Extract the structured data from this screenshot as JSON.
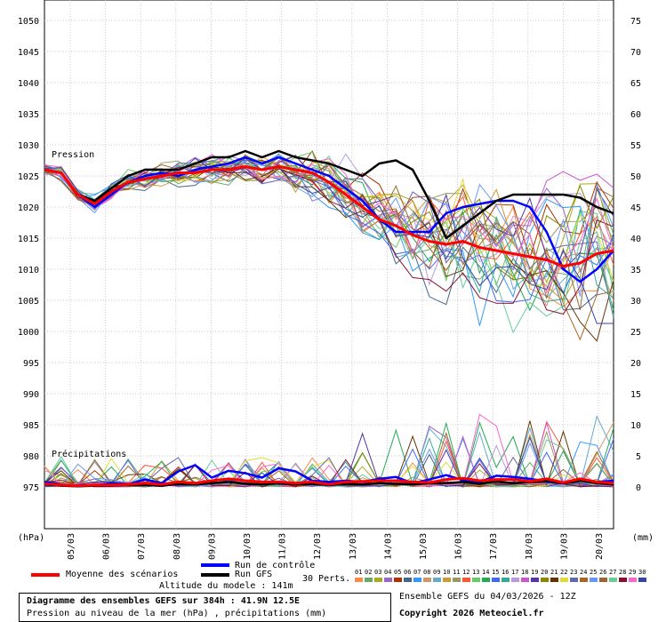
{
  "chart_data": {
    "type": "line",
    "left_axis": {
      "unit_label": "(hPa)",
      "ylim": [
        970,
        1055
      ],
      "ticks": [
        1050,
        1045,
        1040,
        1035,
        1030,
        1025,
        1020,
        1015,
        1010,
        1005,
        1000,
        995,
        990,
        985,
        980,
        975
      ]
    },
    "right_axis": {
      "unit_label": "(mm)",
      "ylim": [
        -5,
        80
      ],
      "ticks": [
        75,
        70,
        65,
        60,
        55,
        50,
        45,
        40,
        35,
        30,
        25,
        20,
        15,
        10,
        5,
        0
      ]
    },
    "x_ticks": [
      "05/03",
      "06/03",
      "07/03",
      "08/03",
      "09/03",
      "10/03",
      "11/03",
      "12/03",
      "13/03",
      "14/03",
      "15/03",
      "16/03",
      "17/03",
      "18/03",
      "19/03",
      "20/03"
    ],
    "grid": true,
    "section_labels": {
      "pressure": "Pression",
      "precip": "Précipitations"
    },
    "series": [
      {
        "name": "Moyenne des scénarios",
        "color": "#ff0000",
        "pressure": [
          1026,
          1025.5,
          1022,
          1020.5,
          1022.5,
          1024,
          1024.5,
          1025,
          1025.5,
          1025.5,
          1026,
          1026,
          1026.5,
          1026,
          1026.5,
          1026,
          1025.5,
          1024,
          1022,
          1020,
          1018,
          1017,
          1015.5,
          1014.5,
          1014,
          1014.5,
          1013.5,
          1013,
          1012.5,
          1012,
          1011.5,
          1010.5,
          1011,
          1012.5,
          1013
        ],
        "precip": [
          0.5,
          0.3,
          0.2,
          0.3,
          0.3,
          0.4,
          0.6,
          0.4,
          0.8,
          0.6,
          1,
          1.3,
          1,
          0.8,
          0.8,
          0.6,
          0.8,
          0.4,
          0.8,
          0.9,
          1,
          1,
          0.8,
          0.7,
          1.2,
          1.4,
          1,
          1.2,
          1.2,
          0.9,
          1.3,
          0.7,
          1.3,
          0.8,
          0.6
        ]
      },
      {
        "name": "Run de contrôle",
        "color": "#0000ff",
        "pressure": [
          1026,
          1025.5,
          1022,
          1020,
          1022,
          1024,
          1025,
          1025.5,
          1025,
          1026,
          1026.5,
          1027,
          1028,
          1027,
          1028,
          1027,
          1026,
          1025,
          1023,
          1021,
          1018,
          1016,
          1016,
          1016,
          1019,
          1020,
          1020.5,
          1021,
          1021,
          1020,
          1016,
          1010,
          1008,
          1010,
          1013
        ],
        "precip": [
          0.8,
          0.4,
          0.2,
          0.2,
          0.6,
          0.4,
          1.2,
          0.6,
          2.5,
          3.5,
          1.5,
          2.6,
          2.2,
          1.5,
          3,
          2.5,
          1,
          0.8,
          1,
          0.8,
          1.3,
          1.6,
          0.6,
          1.2,
          1.9,
          1.1,
          0.8,
          1.8,
          1.6,
          1.3,
          0.9,
          0.6,
          1,
          0.8,
          1
        ]
      },
      {
        "name": "Run GFS",
        "color": "#000000",
        "pressure": [
          1026,
          1025.5,
          1022,
          1021,
          1023,
          1025,
          1026,
          1026,
          1026,
          1027,
          1028,
          1028,
          1029,
          1028,
          1029,
          1028,
          1027.5,
          1027,
          1026,
          1025,
          1027,
          1027.5,
          1026,
          1021,
          1015,
          1017,
          1019,
          1021,
          1022,
          1022,
          1022,
          1022,
          1021.5,
          1020,
          1019
        ],
        "precip": [
          0.4,
          0.2,
          0.1,
          0.2,
          0.2,
          0.3,
          0.3,
          0.2,
          0.5,
          0.4,
          0.6,
          0.8,
          0.5,
          0.4,
          0.6,
          0.4,
          0.5,
          0.3,
          0.5,
          0.4,
          0.6,
          0.5,
          0.4,
          0.6,
          0.6,
          0.8,
          0.5,
          0.9,
          0.6,
          0.8,
          1,
          0.6,
          1,
          0.6,
          0.4
        ]
      }
    ],
    "perturbations": {
      "label": "30 Perts.",
      "names": [
        "01",
        "02",
        "03",
        "04",
        "05",
        "06",
        "07",
        "08",
        "09",
        "10",
        "11",
        "12",
        "13",
        "14",
        "15",
        "16",
        "17",
        "18",
        "19",
        "20",
        "21",
        "22",
        "23",
        "24",
        "25",
        "26",
        "27",
        "28",
        "29",
        "30"
      ],
      "colors": [
        "#ff8844",
        "#66aa66",
        "#aaaa22",
        "#9966cc",
        "#aa3300",
        "#446688",
        "#3399ff",
        "#cc9966",
        "#66aacc",
        "#cc9933",
        "#999966",
        "#ff5533",
        "#66cc66",
        "#22aa55",
        "#4466ff",
        "#33aa99",
        "#bb99dd",
        "#cc55cc",
        "#5533aa",
        "#888800",
        "#663300",
        "#dddd33",
        "#6666aa",
        "#aa6622",
        "#6699ff",
        "#996633",
        "#66cc99",
        "#881133",
        "#ff66cc",
        "#3344aa"
      ]
    }
  },
  "legend": {
    "mean": "Moyenne des scénarios",
    "control": "Run de contrôle",
    "gfs": "Run GFS",
    "altitude": "Altitude du modele : 141m"
  },
  "footer": {
    "title": "Diagramme des ensembles GEFS sur 384h : 41.9N 12.5E",
    "subtitle": "Pression au niveau de la mer (hPa) , précipitations (mm)",
    "run": "Ensemble GEFS du 04/03/2026 - 12Z",
    "copyright": "Copyright 2026 Meteociel.fr"
  }
}
